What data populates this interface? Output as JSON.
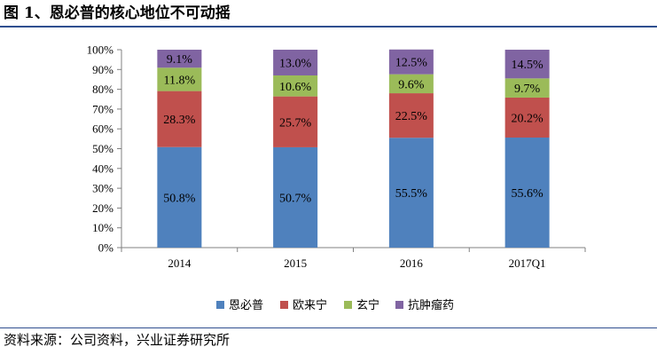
{
  "header": {
    "title": "图 1、恩必普的核心地位不可动摇"
  },
  "footer": {
    "source": "资料来源：公司资料，兴业证券研究所"
  },
  "chart_data": {
    "type": "bar",
    "stacked": true,
    "title": "",
    "xlabel": "",
    "ylabel": "",
    "ylim": [
      0,
      100
    ],
    "y_unit": "%",
    "y_ticks": [
      "0%",
      "10%",
      "20%",
      "30%",
      "40%",
      "50%",
      "60%",
      "70%",
      "80%",
      "90%",
      "100%"
    ],
    "grid": false,
    "legend_position": "bottom",
    "categories": [
      "2014",
      "2015",
      "2016",
      "2017Q1"
    ],
    "series": [
      {
        "name": "恩必普",
        "color": "#4f81bd",
        "values": [
          50.8,
          50.7,
          55.5,
          55.6
        ],
        "labels": [
          "50.8%",
          "50.7%",
          "55.5%",
          "55.6%"
        ]
      },
      {
        "name": "欧来宁",
        "color": "#c0504d",
        "values": [
          28.3,
          25.7,
          22.5,
          20.2
        ],
        "labels": [
          "28.3%",
          "25.7%",
          "22.5%",
          "20.2%"
        ]
      },
      {
        "name": "玄宁",
        "color": "#9bbb59",
        "values": [
          11.8,
          10.6,
          9.6,
          9.7
        ],
        "labels": [
          "11.8%",
          "10.6%",
          "9.6%",
          "9.7%"
        ]
      },
      {
        "name": "抗肿瘤药",
        "color": "#8064a2",
        "values": [
          9.1,
          13.0,
          12.5,
          14.5
        ],
        "labels": [
          "9.1%",
          "13.0%",
          "12.5%",
          "14.5%"
        ]
      }
    ]
  }
}
